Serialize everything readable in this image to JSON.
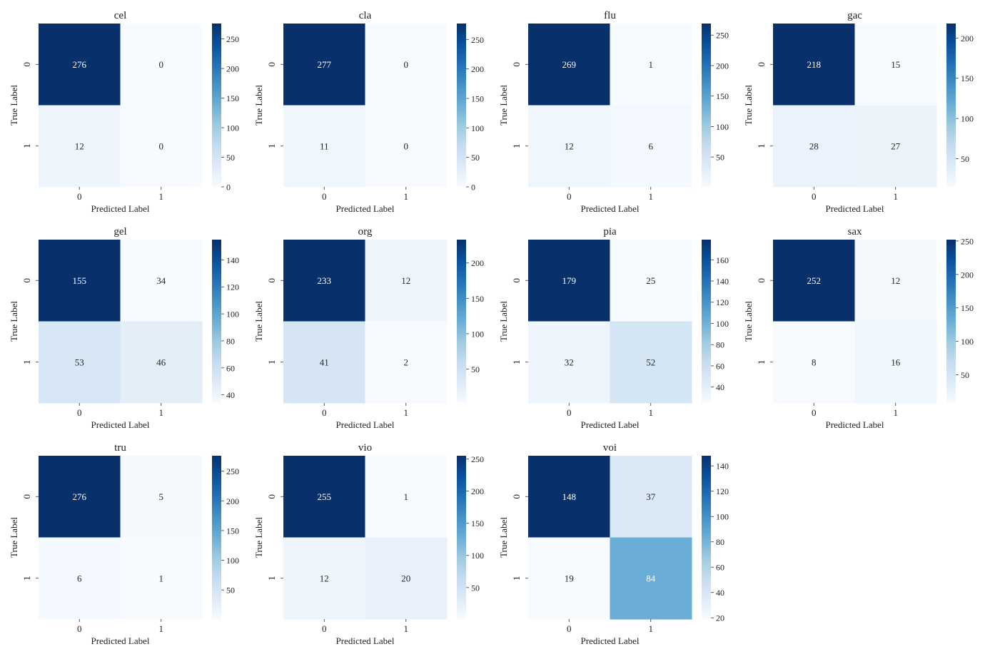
{
  "figure": {
    "background": "#ffffff"
  },
  "chart_data": [
    {
      "type": "heatmap",
      "title": "cel",
      "xlabel": "Predicted Label",
      "ylabel": "True Label",
      "x_ticks": [
        "0",
        "1"
      ],
      "y_ticks": [
        "0",
        "1"
      ],
      "matrix": [
        [
          276,
          0
        ],
        [
          12,
          0
        ]
      ],
      "colorbar": {
        "range": [
          0,
          276
        ],
        "ticks": [
          0,
          50,
          100,
          150,
          200,
          250
        ]
      }
    },
    {
      "type": "heatmap",
      "title": "cla",
      "xlabel": "Predicted Label",
      "ylabel": "True Label",
      "x_ticks": [
        "0",
        "1"
      ],
      "y_ticks": [
        "0",
        "1"
      ],
      "matrix": [
        [
          277,
          0
        ],
        [
          11,
          0
        ]
      ],
      "colorbar": {
        "range": [
          0,
          277
        ],
        "ticks": [
          0,
          50,
          100,
          150,
          200,
          250
        ]
      }
    },
    {
      "type": "heatmap",
      "title": "flu",
      "xlabel": "Predicted Label",
      "ylabel": "True Label",
      "x_ticks": [
        "0",
        "1"
      ],
      "y_ticks": [
        "0",
        "1"
      ],
      "matrix": [
        [
          269,
          1
        ],
        [
          12,
          6
        ]
      ],
      "colorbar": {
        "range": [
          1,
          269
        ],
        "ticks": [
          50,
          100,
          150,
          200,
          250
        ]
      }
    },
    {
      "type": "heatmap",
      "title": "gac",
      "xlabel": "Predicted Label",
      "ylabel": "True Label",
      "x_ticks": [
        "0",
        "1"
      ],
      "y_ticks": [
        "0",
        "1"
      ],
      "matrix": [
        [
          218,
          15
        ],
        [
          28,
          27
        ]
      ],
      "colorbar": {
        "range": [
          15,
          218
        ],
        "ticks": [
          50,
          100,
          150,
          200
        ]
      }
    },
    {
      "type": "heatmap",
      "title": "gel",
      "xlabel": "Predicted Label",
      "ylabel": "True Label",
      "x_ticks": [
        "0",
        "1"
      ],
      "y_ticks": [
        "0",
        "1"
      ],
      "matrix": [
        [
          155,
          34
        ],
        [
          53,
          46
        ]
      ],
      "colorbar": {
        "range": [
          34,
          155
        ],
        "ticks": [
          40,
          60,
          80,
          100,
          120,
          140
        ]
      }
    },
    {
      "type": "heatmap",
      "title": "org",
      "xlabel": "Predicted Label",
      "ylabel": "True Label",
      "x_ticks": [
        "0",
        "1"
      ],
      "y_ticks": [
        "0",
        "1"
      ],
      "matrix": [
        [
          233,
          12
        ],
        [
          41,
          2
        ]
      ],
      "colorbar": {
        "range": [
          2,
          233
        ],
        "ticks": [
          50,
          100,
          150,
          200
        ]
      }
    },
    {
      "type": "heatmap",
      "title": "pia",
      "xlabel": "Predicted Label",
      "ylabel": "True Label",
      "x_ticks": [
        "0",
        "1"
      ],
      "y_ticks": [
        "0",
        "1"
      ],
      "matrix": [
        [
          179,
          25
        ],
        [
          32,
          52
        ]
      ],
      "colorbar": {
        "range": [
          25,
          179
        ],
        "ticks": [
          40,
          60,
          80,
          100,
          120,
          140,
          160
        ]
      }
    },
    {
      "type": "heatmap",
      "title": "sax",
      "xlabel": "Predicted Label",
      "ylabel": "True Label",
      "x_ticks": [
        "0",
        "1"
      ],
      "y_ticks": [
        "0",
        "1"
      ],
      "matrix": [
        [
          252,
          12
        ],
        [
          8,
          16
        ]
      ],
      "colorbar": {
        "range": [
          8,
          252
        ],
        "ticks": [
          50,
          100,
          150,
          200,
          250
        ]
      }
    },
    {
      "type": "heatmap",
      "title": "tru",
      "xlabel": "Predicted Label",
      "ylabel": "True Label",
      "x_ticks": [
        "0",
        "1"
      ],
      "y_ticks": [
        "0",
        "1"
      ],
      "matrix": [
        [
          276,
          5
        ],
        [
          6,
          1
        ]
      ],
      "colorbar": {
        "range": [
          1,
          276
        ],
        "ticks": [
          50,
          100,
          150,
          200,
          250
        ]
      }
    },
    {
      "type": "heatmap",
      "title": "vio",
      "xlabel": "Predicted Label",
      "ylabel": "True Label",
      "x_ticks": [
        "0",
        "1"
      ],
      "y_ticks": [
        "0",
        "1"
      ],
      "matrix": [
        [
          255,
          1
        ],
        [
          12,
          20
        ]
      ],
      "colorbar": {
        "range": [
          1,
          255
        ],
        "ticks": [
          50,
          100,
          150,
          200,
          250
        ]
      }
    },
    {
      "type": "heatmap",
      "title": "voi",
      "xlabel": "Predicted Label",
      "ylabel": "True Label",
      "x_ticks": [
        "0",
        "1"
      ],
      "y_ticks": [
        "0",
        "1"
      ],
      "matrix": [
        [
          148,
          37
        ],
        [
          19,
          84
        ]
      ],
      "colorbar": {
        "range": [
          19,
          148
        ],
        "ticks": [
          20,
          40,
          60,
          80,
          100,
          120,
          140
        ]
      }
    }
  ],
  "colormap": {
    "name": "Blues",
    "stops": [
      "#f7fbff",
      "#deebf7",
      "#c6dbef",
      "#9ecae1",
      "#6baed6",
      "#4292c6",
      "#2171b5",
      "#08519c",
      "#08306b"
    ]
  },
  "annotation_colors": {
    "dark_cell": "#ffffff",
    "light_cell": "#262626"
  }
}
